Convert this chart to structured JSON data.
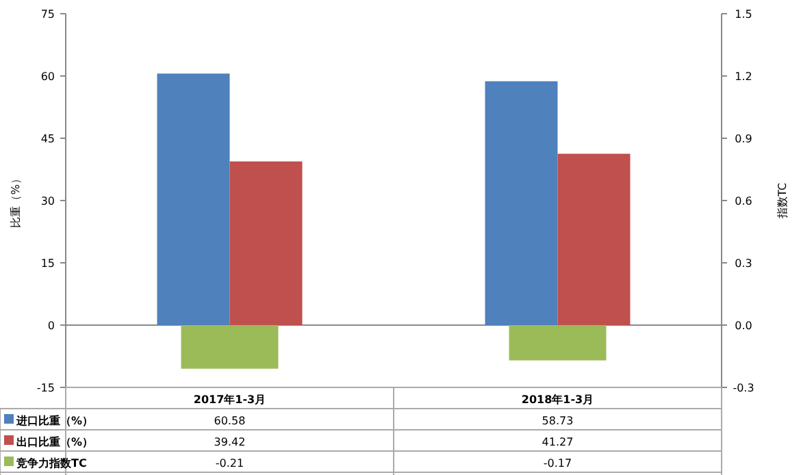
{
  "chart_data": {
    "type": "bar",
    "categories": [
      "2017年1-3月",
      "2018年1-3月"
    ],
    "series": [
      {
        "name": "进口比重（%）",
        "color": "#4f81bd",
        "values": [
          60.58,
          58.73
        ]
      },
      {
        "name": "出口比重（%）",
        "color": "#c0504d",
        "values": [
          39.42,
          41.27
        ]
      },
      {
        "name": "竞争力指数TC",
        "color": "#9bbb59",
        "values": [
          -0.21,
          -0.17
        ],
        "axis": "y2"
      }
    ],
    "ylabel": "比重（%）",
    "y2label": "指数TC",
    "ylim": [
      -15,
      75
    ],
    "yticks": [
      -15,
      0,
      15,
      30,
      45,
      60,
      75
    ],
    "y2lim": [
      -0.3,
      1.5
    ],
    "y2ticks": [
      -0.3,
      {
        "value": 0,
        "label": "0.0"
      },
      0.3,
      0.6,
      0.9,
      1.2,
      1.5
    ],
    "data_labels": true,
    "legend": "bottom"
  }
}
